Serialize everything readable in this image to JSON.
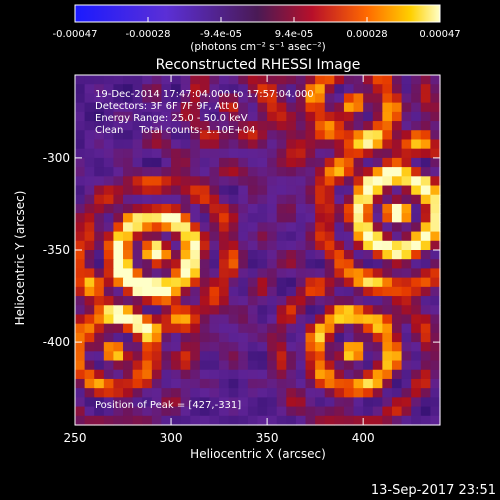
{
  "colorbar": {
    "ticks": [
      "-0.00047",
      "-0.00028",
      "-9.4e-05",
      "9.4e-05",
      "0.00028",
      "0.00047"
    ],
    "unit_label": "(photons cm⁻² s⁻¹ asec⁻²)"
  },
  "title": "Reconstructed RHESSI Image",
  "info": {
    "line1": "19-Dec-2014 17:47:04.000 to 17:57:04.000",
    "line2": "Detectors: 3F 6F 7F 9F, Att 0",
    "line3": "Energy Range: 25.0 - 50.0 keV",
    "line4": "Clean     Total counts: 1.10E+04"
  },
  "peak_label": "Position of Peak = [427,-331]",
  "axes": {
    "xlabel": "Heliocentric X (arcsec)",
    "ylabel": "Heliocentric Y (arcsec)",
    "xticks": [
      "250",
      "300",
      "350",
      "400"
    ],
    "yticks": [
      "-300",
      "-350",
      "-400"
    ],
    "xlim": [
      250,
      440
    ],
    "ylim": [
      -445,
      -255
    ]
  },
  "timestamp": "13-Sep-2017 23:51",
  "image": {
    "description": "reconstructed flux map",
    "sources": [
      {
        "x": 292,
        "y": -352,
        "strength": 1.0
      },
      {
        "x": 418,
        "y": -330,
        "strength": 0.95
      },
      {
        "x": 395,
        "y": -405,
        "strength": 0.75
      },
      {
        "x": 270,
        "y": -405,
        "strength": 0.6
      },
      {
        "x": 395,
        "y": -270,
        "strength": 0.6
      },
      {
        "x": 330,
        "y": -270,
        "strength": 0.35
      }
    ]
  }
}
